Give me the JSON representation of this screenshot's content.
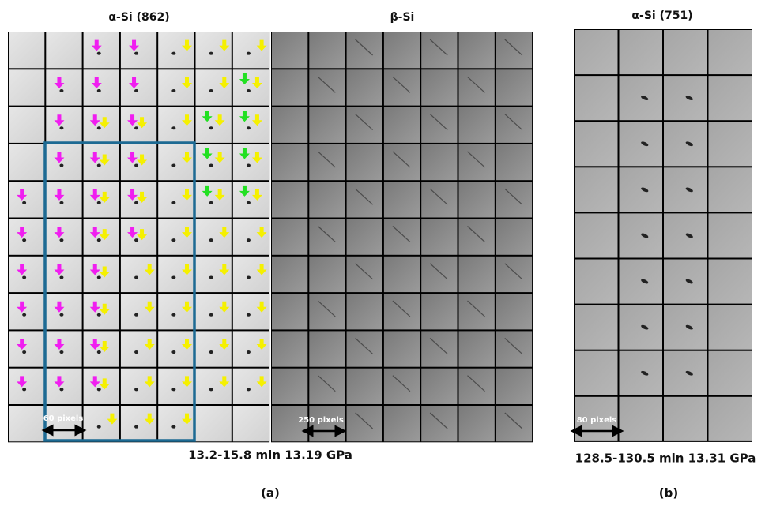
{
  "panel_a": {
    "titles": [
      "α-Si (862)",
      "β-Si"
    ],
    "scale_bars": [
      "60 pixels",
      "250 pixels"
    ],
    "condition": "13.2-15.8 min 13.19 GPa",
    "caption": "(a)"
  },
  "panel_b": {
    "title": "α-Si (751)",
    "scale_bar": "80 pixels",
    "condition": "128.5-130.5 min  13.31 GPa",
    "caption": "(b)"
  }
}
